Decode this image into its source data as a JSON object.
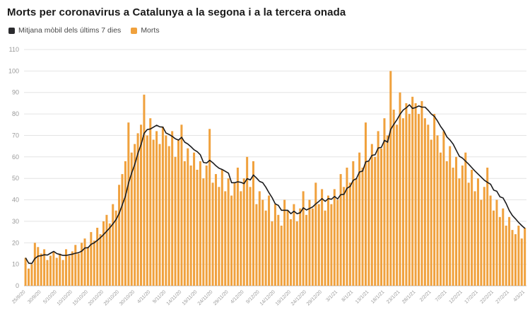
{
  "title": "Morts per coronavirus a Catalunya a la segona i a la tercera onada",
  "legend": {
    "items": [
      {
        "label": "Mitjana mòbil dels últims 7 dies",
        "color": "#2b2b2e",
        "type": "line"
      },
      {
        "label": "Morts",
        "color": "#f0a13d",
        "type": "bar"
      }
    ]
  },
  "colors": {
    "bar": "#f0a13d",
    "line": "#1b1b1d",
    "grid": "#e4e4e4",
    "baseline": "#bbbbbb",
    "tick_text": "#9a9a9a"
  },
  "chart_data": {
    "type": "bar",
    "title": "Morts per coronavirus a Catalunya a la segona i a la tercera onada",
    "xlabel": "",
    "ylabel": "",
    "ylim": [
      0,
      110
    ],
    "y_ticks": [
      0,
      10,
      20,
      30,
      40,
      50,
      60,
      70,
      80,
      90,
      100,
      110
    ],
    "grid": true,
    "legend_position": "top-left",
    "x_tick_every": 5,
    "x_tick_labels": [
      "25/9/20",
      "30/9/20",
      "5/10/20",
      "10/10/20",
      "15/10/20",
      "20/10/20",
      "25/10/20",
      "30/10/20",
      "4/11/20",
      "9/11/20",
      "14/11/20",
      "19/11/20",
      "24/11/20",
      "29/11/20",
      "4/12/20",
      "9/12/20",
      "14/12/20",
      "19/12/20",
      "24/12/20",
      "29/12/20",
      "3/1/21",
      "8/1/21",
      "13/1/21",
      "18/1/21",
      "23/1/21",
      "28/1/21",
      "2/2/21",
      "7/2/21",
      "12/2/21",
      "17/2/21",
      "22/2/21",
      "27/2/21",
      "4/3/21"
    ],
    "series": [
      {
        "name": "Morts",
        "type": "bar",
        "color": "#f0a13d",
        "values": [
          13,
          8,
          10,
          20,
          18,
          15,
          17,
          12,
          14,
          16,
          13,
          15,
          12,
          17,
          14,
          16,
          19,
          15,
          20,
          22,
          18,
          25,
          21,
          27,
          24,
          30,
          33,
          29,
          38,
          35,
          47,
          52,
          58,
          76,
          62,
          66,
          71,
          75,
          89,
          70,
          78,
          68,
          72,
          66,
          74,
          70,
          65,
          72,
          60,
          68,
          75,
          58,
          64,
          56,
          62,
          54,
          58,
          50,
          56,
          73,
          48,
          52,
          46,
          54,
          44,
          50,
          42,
          48,
          55,
          44,
          50,
          60,
          46,
          58,
          38,
          44,
          40,
          35,
          42,
          30,
          38,
          33,
          28,
          40,
          35,
          31,
          38,
          30,
          36,
          44,
          33,
          40,
          36,
          48,
          38,
          45,
          35,
          42,
          38,
          45,
          40,
          52,
          46,
          55,
          48,
          58,
          50,
          62,
          55,
          76,
          58,
          66,
          60,
          72,
          64,
          78,
          70,
          100,
          82,
          75,
          90,
          78,
          85,
          80,
          88,
          85,
          80,
          86,
          78,
          75,
          68,
          80,
          70,
          62,
          72,
          58,
          65,
          55,
          60,
          50,
          56,
          62,
          48,
          54,
          44,
          50,
          40,
          46,
          55,
          42,
          35,
          40,
          32,
          36,
          28,
          32,
          26,
          24,
          28,
          22,
          27
        ]
      },
      {
        "name": "Mitjana mòbil dels últims 7 dies",
        "type": "line",
        "color": "#1b1b1d",
        "derived": "trailing 7-day mean of Morts"
      }
    ]
  }
}
